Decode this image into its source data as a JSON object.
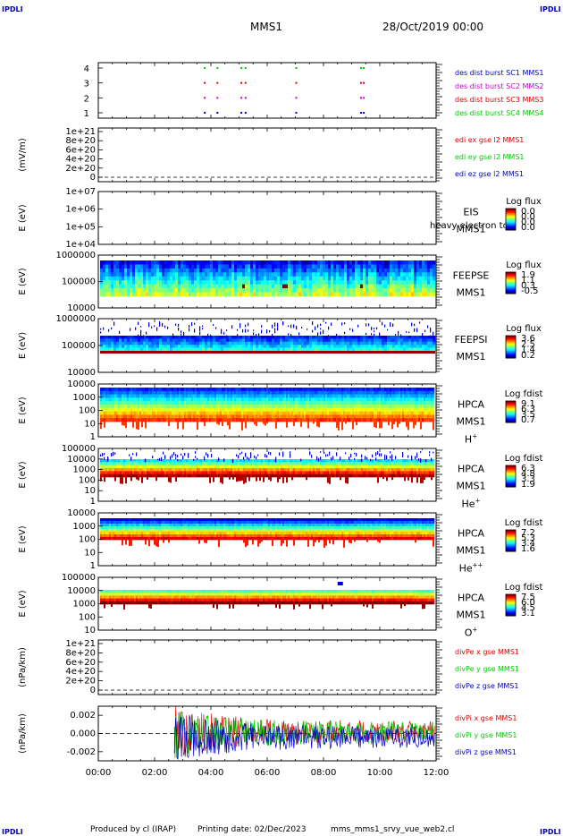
{
  "header": {
    "corner_tl": "IPDLI",
    "corner_tr": "IPDLI",
    "corner_bl": "IPDLI",
    "corner_br": "IPDLI",
    "mission": "MMS1",
    "date": "28/Oct/2019 00:00"
  },
  "footer": {
    "produced": "Produced by cl (IRAP)",
    "printing": "Printing date: 02/Dec/2023",
    "script": "mms_mms1_srvy_vue_web2.cl"
  },
  "time_axis": {
    "ticks": [
      "00:00",
      "02:00",
      "04:00",
      "06:00",
      "08:00",
      "10:00",
      "12:00"
    ],
    "range_hours": [
      0,
      12
    ]
  },
  "colors": {
    "red": "#dd0000",
    "green": "#00cc00",
    "blue": "#0000cc",
    "magenta": "#cc00cc",
    "navy": "#000099"
  },
  "chart_data": [
    {
      "type": "scatter",
      "panel": "burst",
      "yticks": [
        "4",
        "3",
        "2",
        "1"
      ],
      "legend": [
        {
          "label": "des dist burst SC1 MMS1",
          "color": "#0000cc"
        },
        {
          "label": "des dist burst SC2 MMS2",
          "color": "#cc00cc"
        },
        {
          "label": "des dist burst SC3 MMS3",
          "color": "#dd0000"
        },
        {
          "label": "des dist burst SC4 MMS4",
          "color": "#00cc00"
        }
      ],
      "burst_times_hours": [
        3.75,
        4.2,
        5.05,
        5.2,
        7.0,
        9.3,
        9.4
      ]
    },
    {
      "type": "line",
      "panel": "edi",
      "ylabel": "(mV/m)",
      "yticks": [
        "1e+21",
        "8e+20",
        "6e+20",
        "4e+20",
        "2e+20",
        "0"
      ],
      "legend": [
        {
          "label": "edi ex gse l2 MMS1",
          "color": "#dd0000"
        },
        {
          "label": "edi ey gse l2 MMS1",
          "color": "#00cc00"
        },
        {
          "label": "edi ez gse l2 MMS1",
          "color": "#0000cc"
        }
      ]
    },
    {
      "type": "heatmap",
      "panel": "eis",
      "ylabel": "E (eV)",
      "yticks": [
        "1e+07",
        "1e+06",
        "1e+05",
        "1e+04"
      ],
      "label_lines": [
        "EIS",
        "MMS1"
      ],
      "overlay_text": "heavy electron to",
      "colorbar_title": "Log flux",
      "colorbar_ticks": [
        "0.0",
        "0.0",
        "0.0",
        "0.0"
      ]
    },
    {
      "type": "heatmap",
      "panel": "feepse",
      "ylabel": "E (eV)",
      "yticks": [
        "1000000",
        "100000",
        "10000"
      ],
      "label_lines": [
        "FEEPSE",
        "MMS1"
      ],
      "colorbar_title": "Log flux",
      "colorbar_ticks": [
        "1.9",
        "1.1",
        "0.3",
        "-0.5"
      ]
    },
    {
      "type": "heatmap",
      "panel": "feepsi",
      "ylabel": "E (eV)",
      "yticks": [
        "1000000",
        "100000",
        "10000"
      ],
      "label_lines": [
        "FEEPSI",
        "MMS1"
      ],
      "colorbar_title": "Log flux",
      "colorbar_ticks": [
        "3.6",
        "2.5",
        "1.4",
        "0.2"
      ]
    },
    {
      "type": "heatmap",
      "panel": "hpca_h",
      "ylabel": "E (eV)",
      "yticks": [
        "10000",
        "1000",
        "100",
        "10",
        "1"
      ],
      "label_lines": [
        "HPCA",
        "MMS1"
      ],
      "species": "H",
      "species_sup": "+",
      "colorbar_title": "Log fdist",
      "colorbar_ticks": [
        "9.1",
        "6.3",
        "3.5",
        "0.7"
      ]
    },
    {
      "type": "heatmap",
      "panel": "hpca_he",
      "ylabel": "E (eV)",
      "yticks": [
        "100000",
        "10000",
        "1000",
        "100",
        "10",
        "1"
      ],
      "label_lines": [
        "HPCA",
        "MMS1"
      ],
      "species": "He",
      "species_sup": "+",
      "colorbar_title": "Log fdist",
      "colorbar_ticks": [
        "6.3",
        "4.8",
        "3.3",
        "1.9"
      ]
    },
    {
      "type": "heatmap",
      "panel": "hpca_hepp",
      "ylabel": "E (eV)",
      "yticks": [
        "10000",
        "1000",
        "100",
        "10",
        "1"
      ],
      "label_lines": [
        "HPCA",
        "MMS1"
      ],
      "species": "He",
      "species_sup": "++",
      "colorbar_title": "Log fdist",
      "colorbar_ticks": [
        "7.2",
        "5.3",
        "3.4",
        "1.6"
      ]
    },
    {
      "type": "heatmap",
      "panel": "hpca_o",
      "ylabel": "E (eV)",
      "yticks": [
        "100000",
        "10000",
        "1000",
        "100",
        "10"
      ],
      "label_lines": [
        "HPCA",
        "MMS1"
      ],
      "species": "O",
      "species_sup": "+",
      "colorbar_title": "Log fdist",
      "colorbar_ticks": [
        "7.5",
        "6.0",
        "4.5",
        "3.1"
      ]
    },
    {
      "type": "line",
      "panel": "divpe",
      "ylabel": "(nPa/km)",
      "yticks": [
        "1e+21",
        "8e+20",
        "6e+20",
        "4e+20",
        "2e+20",
        "0"
      ],
      "legend": [
        {
          "label": "divPe x gse MMS1",
          "color": "#dd0000"
        },
        {
          "label": "divPe y gse MMS1",
          "color": "#00cc00"
        },
        {
          "label": "divPe z gse MMS1",
          "color": "#0000cc"
        }
      ]
    },
    {
      "type": "line",
      "panel": "divpi",
      "ylabel": "(nPa/km)",
      "yticks": [
        "0.002",
        "0.000",
        "-0.002"
      ],
      "ylim": [
        -0.003,
        0.003
      ],
      "data_start_hours": 2.7,
      "legend": [
        {
          "label": "divPi x gse MMS1",
          "color": "#dd0000"
        },
        {
          "label": "divPi y gse MMS1",
          "color": "#00cc00"
        },
        {
          "label": "divPi z gse MMS1",
          "color": "#0000cc"
        }
      ]
    }
  ]
}
